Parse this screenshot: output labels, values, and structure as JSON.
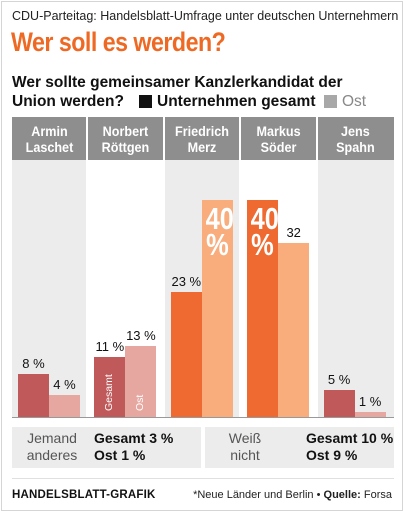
{
  "header": {
    "kicker": "CDU-Parteitag: Handelsblatt-Umfrage unter deutschen Unternehmern",
    "headline": "Wer soll es werden?",
    "question_line1": "Wer sollte gemeinsamer Kanzlerkandidat der",
    "question_line2": "Union werden?"
  },
  "legend": {
    "gesamt": "Unternehmen gesamt",
    "ost": "Ost",
    "gesamt_color": "#c0595a",
    "ost_color": "#e5a79f",
    "highlight_gesamt_color": "#ee6a30",
    "highlight_ost_color": "#f9ad7d"
  },
  "chart_data": {
    "type": "bar",
    "categories": [
      "Armin Laschet",
      "Norbert Röttgen",
      "Friedrich Merz",
      "Markus Söder",
      "Jens Spahn"
    ],
    "category_lines": [
      [
        "Armin",
        "Laschet"
      ],
      [
        "Norbert",
        "Röttgen"
      ],
      [
        "Friedrich",
        "Merz"
      ],
      [
        "Markus",
        "Söder"
      ],
      [
        "Jens",
        "Spahn"
      ]
    ],
    "series": [
      {
        "name": "Unternehmen gesamt",
        "values": [
          8,
          11,
          23,
          40,
          5
        ]
      },
      {
        "name": "Ost",
        "values": [
          4,
          13,
          40,
          32,
          1
        ]
      }
    ],
    "labels": {
      "gesamt": [
        "8 %",
        "11 %",
        "23 %",
        "40 %",
        "5 %"
      ],
      "ost": [
        "4 %",
        "13 %",
        "40 %",
        "32",
        "1 %"
      ]
    },
    "in_bar_labels": {
      "gesamt": "Gesamt",
      "ost": "Ost"
    },
    "highlight": {
      "Friedrich Merz": "ost",
      "Markus Söder": "gesamt"
    },
    "ylim": [
      0,
      40
    ],
    "xlabel": "",
    "ylabel": ""
  },
  "others": [
    {
      "label_line1": "Jemand",
      "label_line2": "anderes",
      "gesamt": "Gesamt 3 %",
      "ost": "Ost 1 %"
    },
    {
      "label_line1": "Weiß",
      "label_line2": "nicht",
      "gesamt": "Gesamt 10 %",
      "ost": "Ost 9 %"
    }
  ],
  "footer": {
    "brand": "HANDELSBLATT-GRAFIK",
    "note": "*Neue Länder und Berlin •",
    "source_label": "Quelle:",
    "source": "Forsa"
  }
}
